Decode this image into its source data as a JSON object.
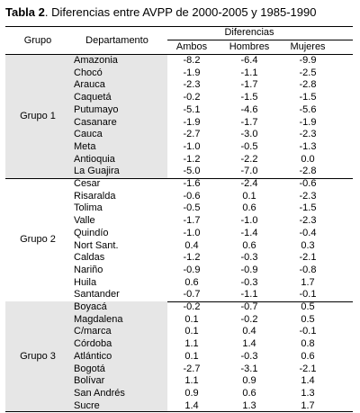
{
  "title": {
    "label": "Tabla 2",
    "text": ". Diferencias entre AVPP de 2000-2005 y 1985-1990"
  },
  "header": {
    "group": "Grupo",
    "department": "Departamento",
    "differences": "Diferencias",
    "columns": [
      "Ambos",
      "Hombres",
      "Mujeres"
    ]
  },
  "groups": [
    {
      "name": "Grupo 1",
      "rows": [
        [
          "Amazonia",
          "-8.2",
          "-6.4",
          "-9.9"
        ],
        [
          "Chocó",
          "-1.9",
          "-1.1",
          "-2.5"
        ],
        [
          "Arauca",
          "-2.3",
          "-1.7",
          "-2.8"
        ],
        [
          "Caquetá",
          "-0.2",
          "-1.5",
          "-1.5"
        ],
        [
          "Putumayo",
          "-5.1",
          "-4.6",
          "-5.6"
        ],
        [
          "Casanare",
          "-1.9",
          "-1.7",
          "-1.9"
        ],
        [
          "Cauca",
          "-2.7",
          "-3.0",
          "-2.3"
        ],
        [
          "Meta",
          "-1.0",
          "-0.5",
          "-1.3"
        ],
        [
          "Antioquia",
          "-1.2",
          "-2.2",
          "0.0"
        ],
        [
          "La Guajira",
          "-5.0",
          "-7.0",
          "-2.8"
        ]
      ]
    },
    {
      "name": "Grupo 2",
      "rows": [
        [
          "Cesar",
          "-1.6",
          "-2.4",
          "-0.6"
        ],
        [
          "Risaralda",
          "-0.6",
          "0.1",
          "-2.3"
        ],
        [
          "Tolima",
          "-0.5",
          "0.6",
          "-1.5"
        ],
        [
          "Valle",
          "-1.7",
          "-1.0",
          "-2.3"
        ],
        [
          "Quindío",
          "-1.0",
          "-1.4",
          "-0.4"
        ],
        [
          "Nort Sant.",
          "0.4",
          "0.6",
          "0.3"
        ],
        [
          "Caldas",
          "-1.2",
          "-0.3",
          "-2.1"
        ],
        [
          "Nariño",
          "-0.9",
          "-0.9",
          "-0.8"
        ],
        [
          "Huila",
          "0.6",
          "-0.3",
          "1.7"
        ],
        [
          "Santander",
          "-0.7",
          "-1.1",
          "-0.1"
        ]
      ]
    },
    {
      "name": "Grupo 3",
      "rows": [
        [
          "Boyacá",
          "-0.2",
          "-0.7",
          "0.5"
        ],
        [
          "Magdalena",
          "0.1",
          "-0.2",
          "0.5"
        ],
        [
          "C/marca",
          "0.1",
          "0.4",
          "-0.1"
        ],
        [
          "Córdoba",
          "1.1",
          "1.4",
          "0.8"
        ],
        [
          "Atlántico",
          "0.1",
          "-0.3",
          "0.6"
        ],
        [
          "Bogotá",
          "-2.7",
          "-3.1",
          "-2.1"
        ],
        [
          "Bolívar",
          "1.1",
          "0.9",
          "1.4"
        ],
        [
          "San Andrés",
          "0.9",
          "0.6",
          "1.3"
        ],
        [
          "Sucre",
          "1.4",
          "1.3",
          "1.7"
        ]
      ]
    }
  ]
}
